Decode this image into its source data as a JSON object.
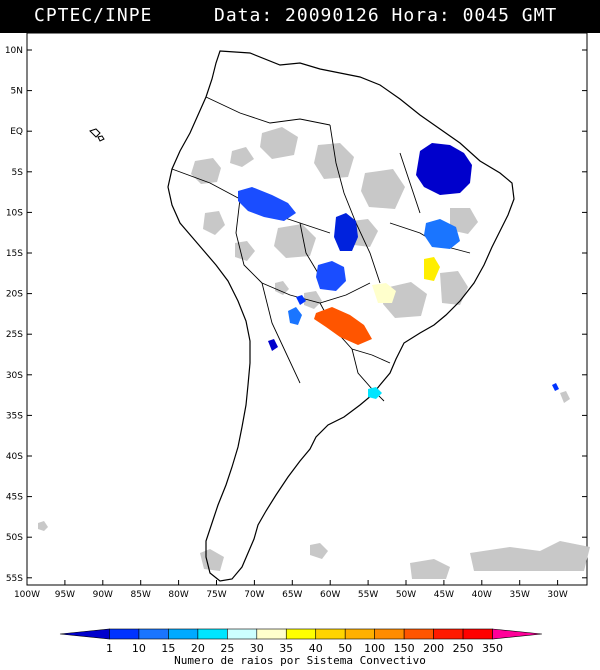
{
  "header": {
    "org": "CPTEC/INPE",
    "datetime": "Data: 20090126 Hora: 0045 GMT"
  },
  "map": {
    "lat_labels": [
      "10N",
      "5N",
      "EQ",
      "5S",
      "10S",
      "15S",
      "20S",
      "25S",
      "30S",
      "35S",
      "40S",
      "45S",
      "50S",
      "55S"
    ],
    "lon_labels": [
      "100W",
      "95W",
      "90W",
      "85W",
      "80W",
      "75W",
      "70W",
      "65W",
      "60W",
      "55W",
      "50W",
      "45W",
      "40W",
      "35W",
      "30W"
    ]
  },
  "legend": {
    "ticks": [
      "1",
      "10",
      "15",
      "20",
      "25",
      "30",
      "35",
      "40",
      "50",
      "100",
      "150",
      "200",
      "250",
      "350"
    ],
    "colors": [
      "#0000cc",
      "#0033ff",
      "#1a75ff",
      "#00aaff",
      "#00e5ff",
      "#ccffff",
      "#ffffcc",
      "#ffff00",
      "#ffd400",
      "#ffb000",
      "#ff8c00",
      "#ff5500",
      "#ff1a00",
      "#ff0000",
      "#ff0099"
    ],
    "caption": "Numero de raios por Sistema Convectivo"
  }
}
